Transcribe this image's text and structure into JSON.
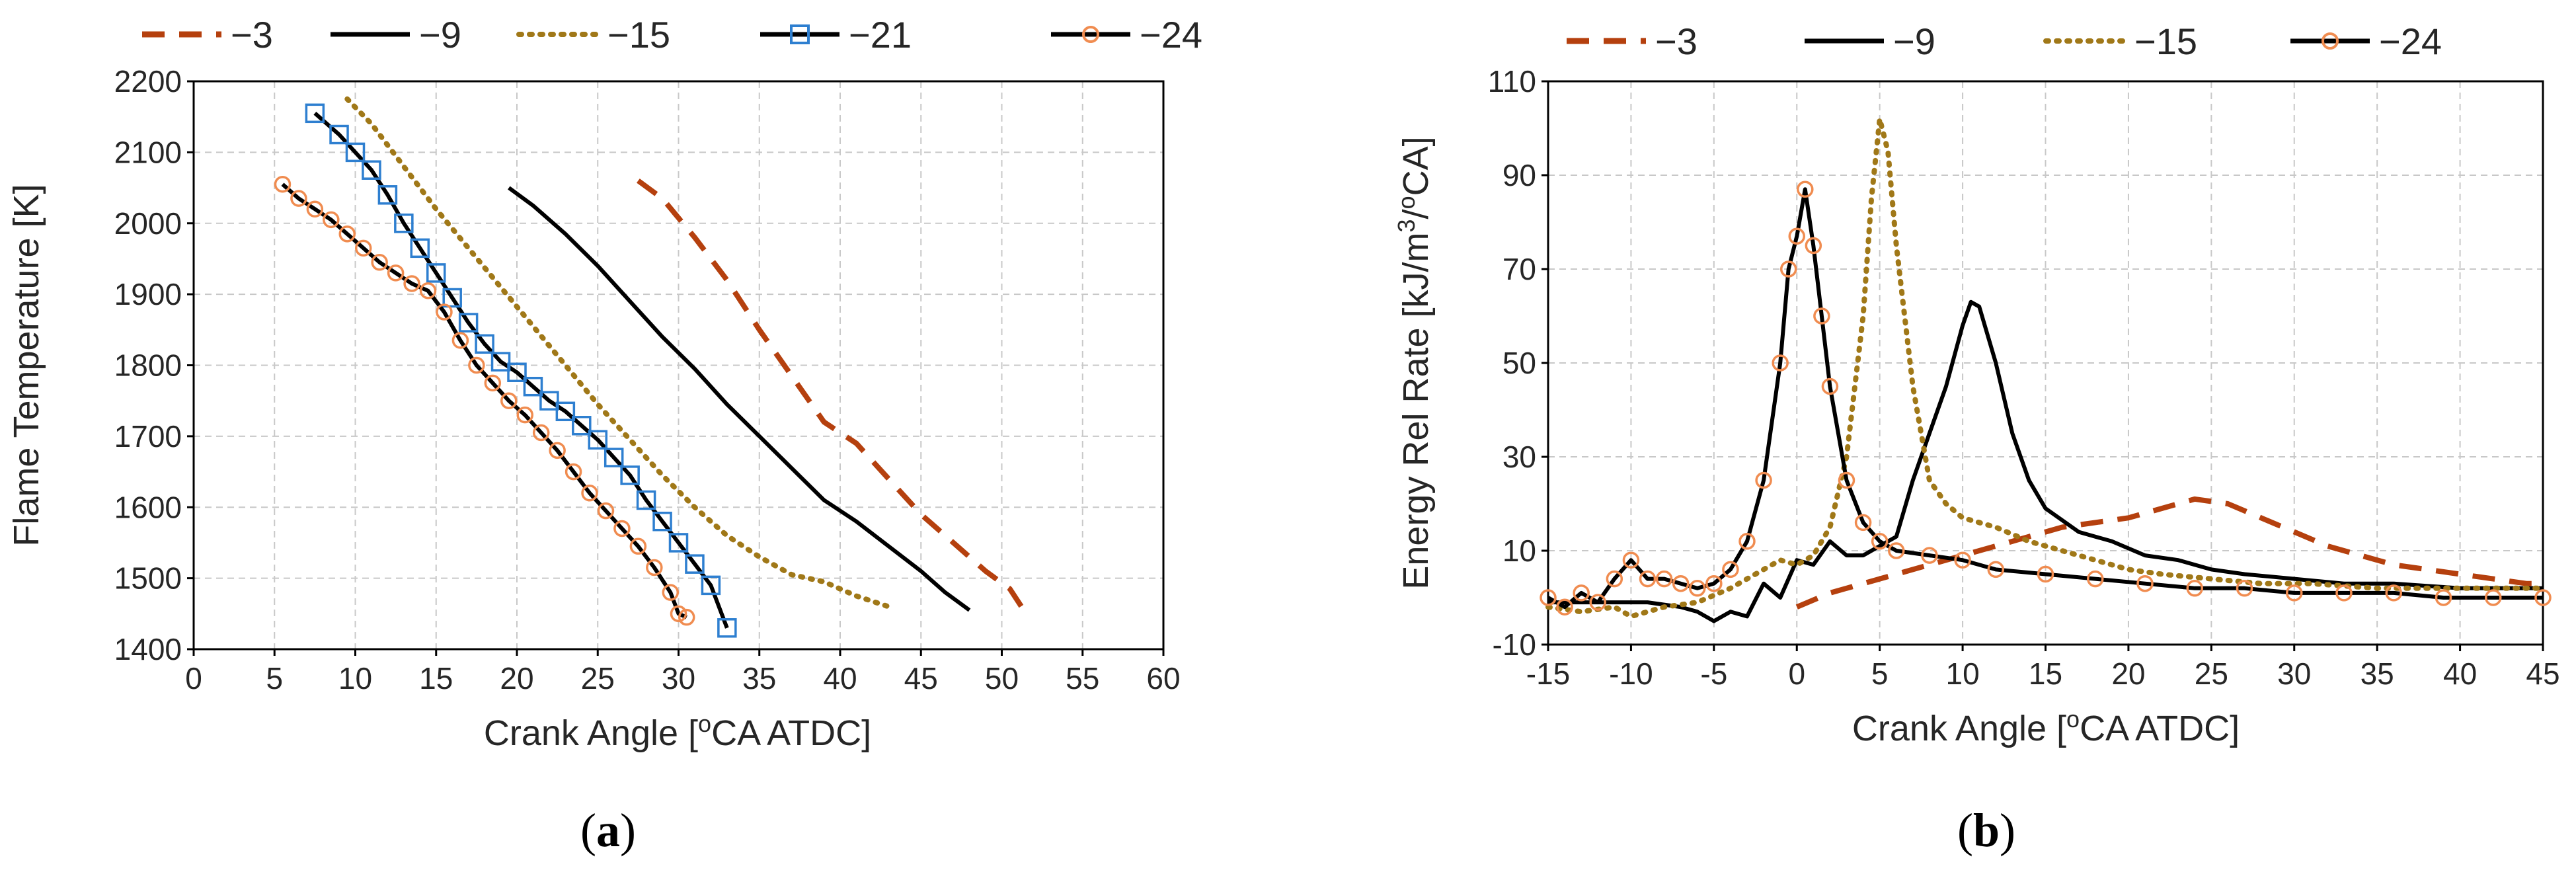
{
  "chart_data": [
    {
      "type": "line",
      "panel_label": "a",
      "xlabel": "Crank Angle [oCA ATDC]",
      "ylabel": "Flame Temperature [K]",
      "xlim": [
        0,
        60
      ],
      "ylim": [
        1400,
        2200
      ],
      "xticks": [
        0,
        5,
        10,
        15,
        20,
        25,
        30,
        35,
        40,
        45,
        50,
        55,
        60
      ],
      "yticks": [
        1400,
        1500,
        1600,
        1700,
        1800,
        1900,
        2000,
        2100,
        2200
      ],
      "grid": true,
      "legend_position": "top",
      "series": [
        {
          "name": "−3",
          "style": "dashed",
          "color": "#b5400e",
          "points": [
            [
              27.5,
              2060
            ],
            [
              29,
              2035
            ],
            [
              31,
              1980
            ],
            [
              33,
              1920
            ],
            [
              35,
              1850
            ],
            [
              37,
              1785
            ],
            [
              39,
              1720
            ],
            [
              41,
              1690
            ],
            [
              43,
              1640
            ],
            [
              45,
              1590
            ],
            [
              47,
              1550
            ],
            [
              49,
              1510
            ],
            [
              50.5,
              1485
            ],
            [
              51.5,
              1450
            ]
          ]
        },
        {
          "name": "−9",
          "style": "solid",
          "color": "#000000",
          "points": [
            [
              19.5,
              2050
            ],
            [
              21,
              2025
            ],
            [
              23,
              1985
            ],
            [
              25,
              1940
            ],
            [
              27,
              1890
            ],
            [
              29,
              1840
            ],
            [
              31,
              1795
            ],
            [
              33,
              1745
            ],
            [
              35,
              1700
            ],
            [
              37,
              1655
            ],
            [
              39,
              1610
            ],
            [
              41,
              1580
            ],
            [
              43,
              1545
            ],
            [
              45,
              1510
            ],
            [
              46.5,
              1480
            ],
            [
              48,
              1455
            ]
          ]
        },
        {
          "name": "−15",
          "style": "dotted",
          "color": "#a07818",
          "points": [
            [
              9.5,
              2175
            ],
            [
              11,
              2140
            ],
            [
              13,
              2080
            ],
            [
              15,
              2020
            ],
            [
              17,
              1965
            ],
            [
              19,
              1910
            ],
            [
              21,
              1855
            ],
            [
              23,
              1800
            ],
            [
              25,
              1745
            ],
            [
              27,
              1695
            ],
            [
              29,
              1645
            ],
            [
              31,
              1600
            ],
            [
              33,
              1560
            ],
            [
              35,
              1530
            ],
            [
              37,
              1505
            ],
            [
              39,
              1495
            ],
            [
              41,
              1475
            ],
            [
              43,
              1460
            ]
          ]
        },
        {
          "name": "−21",
          "style": "solid-square",
          "color": "#000000",
          "marker_color": "#2e7fd0",
          "points": [
            [
              7.5,
              2155
            ],
            [
              9,
              2125
            ],
            [
              10,
              2100
            ],
            [
              11,
              2075
            ],
            [
              12,
              2040
            ],
            [
              13,
              2000
            ],
            [
              14,
              1965
            ],
            [
              15,
              1930
            ],
            [
              16,
              1895
            ],
            [
              17,
              1860
            ],
            [
              18,
              1830
            ],
            [
              19,
              1805
            ],
            [
              20,
              1790
            ],
            [
              21,
              1770
            ],
            [
              22,
              1750
            ],
            [
              23,
              1735
            ],
            [
              24,
              1715
            ],
            [
              25,
              1695
            ],
            [
              26,
              1670
            ],
            [
              27,
              1645
            ],
            [
              28,
              1610
            ],
            [
              29,
              1580
            ],
            [
              30,
              1550
            ],
            [
              31,
              1520
            ],
            [
              32,
              1490
            ],
            [
              33,
              1430
            ]
          ]
        },
        {
          "name": "−24",
          "style": "solid-circle",
          "color": "#000000",
          "marker_color": "#f08c50",
          "points": [
            [
              5.5,
              2055
            ],
            [
              6.5,
              2035
            ],
            [
              7.5,
              2020
            ],
            [
              8.5,
              2005
            ],
            [
              9.5,
              1985
            ],
            [
              10.5,
              1965
            ],
            [
              11.5,
              1945
            ],
            [
              12.5,
              1930
            ],
            [
              13.5,
              1915
            ],
            [
              14.5,
              1905
            ],
            [
              15.5,
              1875
            ],
            [
              16.5,
              1835
            ],
            [
              17.5,
              1800
            ],
            [
              18.5,
              1775
            ],
            [
              19.5,
              1750
            ],
            [
              20.5,
              1730
            ],
            [
              21.5,
              1705
            ],
            [
              22.5,
              1680
            ],
            [
              23.5,
              1650
            ],
            [
              24.5,
              1620
            ],
            [
              25.5,
              1595
            ],
            [
              26.5,
              1570
            ],
            [
              27.5,
              1545
            ],
            [
              28.5,
              1515
            ],
            [
              29.5,
              1480
            ],
            [
              30,
              1450
            ],
            [
              30.5,
              1445
            ]
          ]
        }
      ]
    },
    {
      "type": "line",
      "panel_label": "b",
      "xlabel": "Crank Angle [oCA ATDC]",
      "ylabel": "Energy Rel Rate [kJ/m3/oCA]",
      "xlim": [
        -15,
        45
      ],
      "ylim": [
        -10,
        110
      ],
      "xticks": [
        -15,
        -10,
        -5,
        0,
        5,
        10,
        15,
        20,
        25,
        30,
        35,
        40,
        45
      ],
      "yticks": [
        -10,
        10,
        30,
        50,
        70,
        90,
        110
      ],
      "grid": true,
      "legend_position": "top",
      "series": [
        {
          "name": "−3",
          "style": "dashed",
          "color": "#b5400e",
          "points": [
            [
              0,
              -2
            ],
            [
              2,
              1
            ],
            [
              4,
              3
            ],
            [
              6,
              5
            ],
            [
              8,
              7
            ],
            [
              10,
              9
            ],
            [
              12,
              11
            ],
            [
              14,
              13
            ],
            [
              16,
              15
            ],
            [
              18,
              16
            ],
            [
              20,
              17
            ],
            [
              22,
              19
            ],
            [
              24,
              21
            ],
            [
              26,
              20
            ],
            [
              28,
              17
            ],
            [
              30,
              14
            ],
            [
              32,
              11
            ],
            [
              34,
              9
            ],
            [
              36,
              7
            ],
            [
              38,
              6
            ],
            [
              40,
              5
            ],
            [
              42,
              4
            ],
            [
              44,
              3
            ],
            [
              45,
              3
            ]
          ]
        },
        {
          "name": "−9",
          "style": "solid",
          "color": "#000000",
          "points": [
            [
              -15,
              -1
            ],
            [
              -12,
              -1
            ],
            [
              -9,
              -1
            ],
            [
              -7,
              -2
            ],
            [
              -6,
              -3
            ],
            [
              -5,
              -5
            ],
            [
              -4,
              -3
            ],
            [
              -3,
              -4
            ],
            [
              -2,
              3
            ],
            [
              -1,
              0
            ],
            [
              0,
              8
            ],
            [
              1,
              7
            ],
            [
              2,
              12
            ],
            [
              3,
              9
            ],
            [
              4,
              9
            ],
            [
              5,
              11
            ],
            [
              6,
              13
            ],
            [
              7,
              25
            ],
            [
              8,
              35
            ],
            [
              9,
              45
            ],
            [
              10,
              58
            ],
            [
              10.5,
              63
            ],
            [
              11,
              62
            ],
            [
              12,
              50
            ],
            [
              13,
              35
            ],
            [
              14,
              25
            ],
            [
              15,
              19
            ],
            [
              17,
              14
            ],
            [
              19,
              12
            ],
            [
              21,
              9
            ],
            [
              23,
              8
            ],
            [
              25,
              6
            ],
            [
              27,
              5
            ],
            [
              30,
              4
            ],
            [
              33,
              3
            ],
            [
              36,
              3
            ],
            [
              40,
              2
            ],
            [
              45,
              2
            ]
          ]
        },
        {
          "name": "−15",
          "style": "dotted",
          "color": "#a07818",
          "points": [
            [
              -15,
              -2
            ],
            [
              -13,
              -3
            ],
            [
              -11,
              -2
            ],
            [
              -10,
              -4
            ],
            [
              -8,
              -2
            ],
            [
              -6,
              -1
            ],
            [
              -4,
              2
            ],
            [
              -2,
              6
            ],
            [
              -1,
              8
            ],
            [
              0,
              7
            ],
            [
              1,
              9
            ],
            [
              2,
              15
            ],
            [
              3,
              30
            ],
            [
              4,
              60
            ],
            [
              4.5,
              85
            ],
            [
              5,
              102
            ],
            [
              5.5,
              95
            ],
            [
              6,
              75
            ],
            [
              7,
              45
            ],
            [
              8,
              25
            ],
            [
              9,
              20
            ],
            [
              10,
              17
            ],
            [
              12,
              15
            ],
            [
              14,
              12
            ],
            [
              16,
              10
            ],
            [
              18,
              8
            ],
            [
              20,
              6
            ],
            [
              22,
              5
            ],
            [
              25,
              4
            ],
            [
              28,
              3
            ],
            [
              31,
              3
            ],
            [
              35,
              2
            ],
            [
              40,
              2
            ],
            [
              45,
              2
            ]
          ]
        },
        {
          "name": "−24",
          "style": "solid-circle",
          "color": "#000000",
          "marker_color": "#f08c50",
          "points": [
            [
              -15,
              0
            ],
            [
              -14,
              -2
            ],
            [
              -13,
              1
            ],
            [
              -12,
              -1
            ],
            [
              -11,
              4
            ],
            [
              -10,
              8
            ],
            [
              -9,
              4
            ],
            [
              -8,
              4
            ],
            [
              -7,
              3
            ],
            [
              -6,
              2
            ],
            [
              -5,
              3
            ],
            [
              -4,
              6
            ],
            [
              -3,
              12
            ],
            [
              -2,
              25
            ],
            [
              -1,
              50
            ],
            [
              -0.5,
              70
            ],
            [
              0,
              77
            ],
            [
              0.5,
              87
            ],
            [
              1,
              75
            ],
            [
              1.5,
              60
            ],
            [
              2,
              45
            ],
            [
              3,
              25
            ],
            [
              4,
              16
            ],
            [
              5,
              12
            ],
            [
              6,
              10
            ],
            [
              8,
              9
            ],
            [
              10,
              8
            ],
            [
              12,
              6
            ],
            [
              15,
              5
            ],
            [
              18,
              4
            ],
            [
              21,
              3
            ],
            [
              24,
              2
            ],
            [
              27,
              2
            ],
            [
              30,
              1
            ],
            [
              33,
              1
            ],
            [
              36,
              1
            ],
            [
              39,
              0
            ],
            [
              42,
              0
            ],
            [
              45,
              0
            ]
          ]
        }
      ]
    }
  ]
}
